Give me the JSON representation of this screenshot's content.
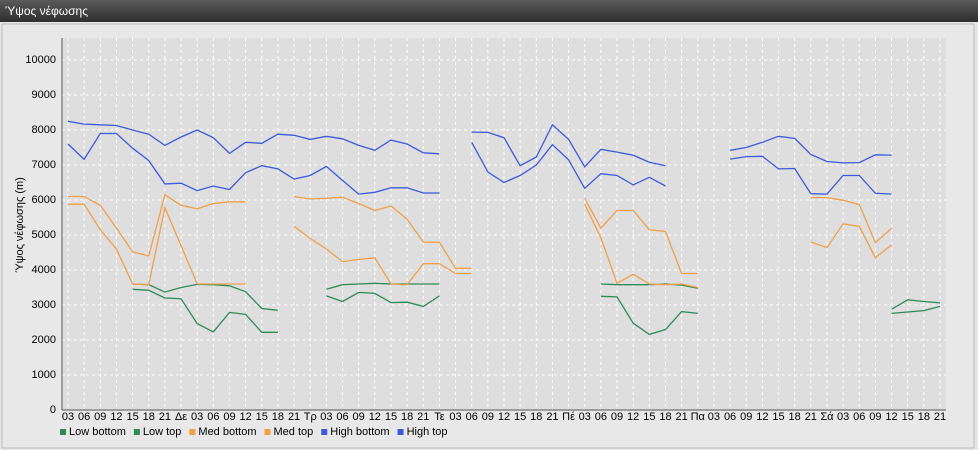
{
  "chart_data": {
    "type": "line",
    "title": "Ύψος νέφωσης",
    "y_label": "Ύψος νέφωσης (m)",
    "categories": [
      "03",
      "06",
      "09",
      "12",
      "15",
      "18",
      "21",
      "Δε",
      "03",
      "06",
      "09",
      "12",
      "15",
      "18",
      "21",
      "Τρ",
      "03",
      "06",
      "09",
      "12",
      "15",
      "18",
      "21",
      "Τε",
      "03",
      "06",
      "09",
      "12",
      "15",
      "18",
      "21",
      "Πέ",
      "03",
      "06",
      "09",
      "12",
      "15",
      "18",
      "21",
      "Πα",
      "03",
      "06",
      "09",
      "12",
      "15",
      "18",
      "21",
      "Σά",
      "03",
      "06",
      "09",
      "12",
      "15",
      "18",
      "21"
    ],
    "ylim": [
      0,
      10000
    ],
    "yticks": [
      0,
      1000,
      2000,
      3000,
      4000,
      5000,
      6000,
      7000,
      8000,
      9000,
      10000
    ],
    "grid": true,
    "series": [
      {
        "name": "Low bottom",
        "color": "#2e8b57",
        "values": [
          null,
          null,
          null,
          null,
          3450,
          3420,
          3200,
          3180,
          2470,
          2230,
          2790,
          2730,
          2220,
          2220,
          null,
          null,
          3260,
          3100,
          3360,
          3330,
          3070,
          3080,
          2960,
          3260,
          null,
          null,
          null,
          null,
          null,
          null,
          null,
          null,
          null,
          3250,
          3230,
          2480,
          2160,
          2300,
          2810,
          2760,
          null,
          null,
          null,
          null,
          null,
          null,
          null,
          null,
          null,
          null,
          null,
          2760,
          2800,
          2840,
          2960
        ]
      },
      {
        "name": "Low top",
        "color": "#2e8b57",
        "values": [
          null,
          null,
          null,
          null,
          3600,
          3580,
          3370,
          3500,
          3590,
          3580,
          3550,
          3380,
          2900,
          2850,
          null,
          null,
          3450,
          3580,
          3600,
          3620,
          3600,
          3600,
          3600,
          3600,
          null,
          null,
          null,
          null,
          null,
          null,
          null,
          null,
          null,
          3600,
          3580,
          3580,
          3580,
          3600,
          3570,
          3480,
          null,
          null,
          null,
          null,
          null,
          null,
          null,
          null,
          null,
          null,
          null,
          2880,
          3150,
          3100,
          3060
        ]
      },
      {
        "name": "Med bottom",
        "color": "#f0a04b",
        "values": [
          5880,
          5880,
          5150,
          4600,
          3600,
          3580,
          5780,
          4700,
          3600,
          3600,
          3600,
          3600,
          null,
          null,
          5250,
          4900,
          4600,
          4240,
          4300,
          4350,
          3600,
          3580,
          4180,
          4180,
          3900,
          3900,
          null,
          null,
          null,
          null,
          null,
          null,
          5880,
          4920,
          3620,
          3880,
          3600,
          3580,
          3600,
          3500,
          null,
          null,
          null,
          null,
          null,
          null,
          4800,
          4640,
          5320,
          5250,
          4350,
          4720,
          null,
          null,
          null
        ]
      },
      {
        "name": "Med top",
        "color": "#f0a04b",
        "values": [
          6100,
          6100,
          5850,
          5200,
          4520,
          4400,
          6150,
          5850,
          5750,
          5900,
          5950,
          5950,
          null,
          null,
          6100,
          6030,
          6050,
          6080,
          5900,
          5700,
          5830,
          5450,
          4800,
          4790,
          4050,
          4050,
          null,
          null,
          null,
          null,
          null,
          null,
          6050,
          5200,
          5700,
          5700,
          5150,
          5100,
          3900,
          3900,
          null,
          null,
          null,
          null,
          null,
          null,
          6070,
          6070,
          5990,
          5870,
          4780,
          5190,
          null,
          null,
          null
        ]
      },
      {
        "name": "High bottom",
        "color": "#3b5bdb",
        "values": [
          7600,
          7160,
          7900,
          7900,
          7480,
          7130,
          6460,
          6480,
          6270,
          6400,
          6300,
          6780,
          6980,
          6890,
          6600,
          6700,
          6960,
          6560,
          6170,
          6220,
          6350,
          6350,
          6200,
          6200,
          null,
          7650,
          6800,
          6500,
          6700,
          7000,
          7580,
          7150,
          6330,
          6750,
          6700,
          6430,
          6650,
          6400,
          null,
          null,
          null,
          7170,
          7240,
          7250,
          6890,
          6900,
          6180,
          6170,
          6700,
          6700,
          6190,
          6170,
          null,
          null,
          null
        ]
      },
      {
        "name": "High top",
        "color": "#3b5bdb",
        "values": [
          8250,
          8170,
          8150,
          8130,
          8000,
          7880,
          7560,
          7800,
          8000,
          7780,
          7330,
          7650,
          7620,
          7880,
          7850,
          7730,
          7820,
          7750,
          7560,
          7420,
          7710,
          7600,
          7350,
          7320,
          null,
          7940,
          7930,
          7780,
          6980,
          7230,
          8150,
          7730,
          6950,
          7450,
          7370,
          7280,
          7080,
          6980,
          null,
          null,
          null,
          7420,
          7500,
          7650,
          7820,
          7760,
          7300,
          7100,
          7060,
          7070,
          7290,
          7280,
          null,
          null,
          null
        ]
      }
    ]
  }
}
